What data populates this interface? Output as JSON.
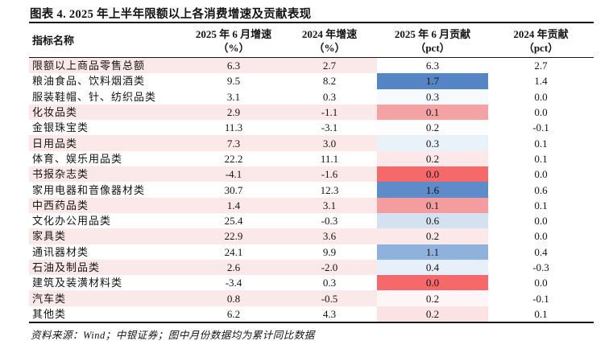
{
  "title": "图表 4. 2025 年上半年限额以上各消费增速及贡献表现",
  "source_note": "资料来源：Wind；中银证券；图中月份数据均为累计同比数据",
  "colors": {
    "stripe_pink": "#FAE9E8",
    "rule_black": "#161616",
    "scale_blue_strong": "#5585C5",
    "scale_red_strong": "#F5696B"
  },
  "table": {
    "columns": [
      {
        "label": "指标名称",
        "sub": ""
      },
      {
        "label": "2025 年 6 月增速",
        "sub": "（%）"
      },
      {
        "label": "2024 年增速",
        "sub": "（%）"
      },
      {
        "label": "2025 年 6 月贡献",
        "sub": "（pct）"
      },
      {
        "label": "2024 年贡献",
        "sub": "（pct）"
      }
    ],
    "rows": [
      {
        "name": "限额以上商品零售总额",
        "g2025": "6.3",
        "g2024": "2.7",
        "c2025": "6.3",
        "c2024": "2.7",
        "striped": true,
        "c2025_bg": null
      },
      {
        "name": "粮油食品、饮料烟酒类",
        "g2025": "9.5",
        "g2024": "8.2",
        "c2025": "1.7",
        "c2024": "1.4",
        "striped": false,
        "c2025_bg": "#5585C5"
      },
      {
        "name": "服装鞋帽、针、纺织品类",
        "g2025": "3.1",
        "g2024": "0.3",
        "c2025": "0.3",
        "c2024": "0.0",
        "striped": false,
        "c2025_bg": "#F7FAFD"
      },
      {
        "name": "化妆品类",
        "g2025": "2.9",
        "g2024": "-1.1",
        "c2025": "0.1",
        "c2024": "0.0",
        "striped": true,
        "c2025_bg": "#F4A2A3"
      },
      {
        "name": "金银珠宝类",
        "g2025": "11.3",
        "g2024": "-3.1",
        "c2025": "0.2",
        "c2024": "-0.1",
        "striped": false,
        "c2025_bg": "#FDFDFE"
      },
      {
        "name": "日用品类",
        "g2025": "7.3",
        "g2024": "3.0",
        "c2025": "0.3",
        "c2024": "0.1",
        "striped": true,
        "c2025_bg": "#E9F1F9"
      },
      {
        "name": "体育、娱乐用品类",
        "g2025": "22.2",
        "g2024": "11.1",
        "c2025": "0.2",
        "c2024": "0.1",
        "striped": false,
        "c2025_bg": "#FCE8E8"
      },
      {
        "name": "书报杂志类",
        "g2025": "-4.1",
        "g2024": "-1.6",
        "c2025": "0.0",
        "c2024": "0.0",
        "striped": true,
        "c2025_bg": "#F5696B"
      },
      {
        "name": "家用电器和音像器材类",
        "g2025": "30.7",
        "g2024": "12.3",
        "c2025": "1.6",
        "c2024": "0.6",
        "striped": false,
        "c2025_bg": "#5E8BC9"
      },
      {
        "name": "中西药品类",
        "g2025": "1.4",
        "g2024": "3.1",
        "c2025": "0.1",
        "c2024": "0.1",
        "striped": true,
        "c2025_bg": "#F49C9E"
      },
      {
        "name": "文化办公用品类",
        "g2025": "25.4",
        "g2024": "-0.3",
        "c2025": "0.6",
        "c2024": "0.0",
        "striped": false,
        "c2025_bg": "#D3E1F0"
      },
      {
        "name": "家具类",
        "g2025": "22.9",
        "g2024": "3.6",
        "c2025": "0.2",
        "c2024": "0.0",
        "striped": true,
        "c2025_bg": "#FBE9E9"
      },
      {
        "name": "通讯器材类",
        "g2025": "24.1",
        "g2024": "9.9",
        "c2025": "1.1",
        "c2024": "0.4",
        "striped": false,
        "c2025_bg": "#8FB2DC"
      },
      {
        "name": "石油及制品类",
        "g2025": "2.6",
        "g2024": "-2.0",
        "c2025": "0.4",
        "c2024": "-0.3",
        "striped": true,
        "c2025_bg": "#E7EFF9"
      },
      {
        "name": "建筑及装潢材料类",
        "g2025": "-3.4",
        "g2024": "0.3",
        "c2025": "0.0",
        "c2024": "0.0",
        "striped": false,
        "c2025_bg": "#F5696B"
      },
      {
        "name": "汽车类",
        "g2025": "0.8",
        "g2024": "-0.5",
        "c2025": "0.2",
        "c2024": "-0.1",
        "striped": true,
        "c2025_bg": "#FDF5F6"
      },
      {
        "name": "其他类",
        "g2025": "6.2",
        "g2024": "4.3",
        "c2025": "0.2",
        "c2024": "0.1",
        "striped": false,
        "c2025_bg": "#FBE3E4"
      }
    ]
  }
}
